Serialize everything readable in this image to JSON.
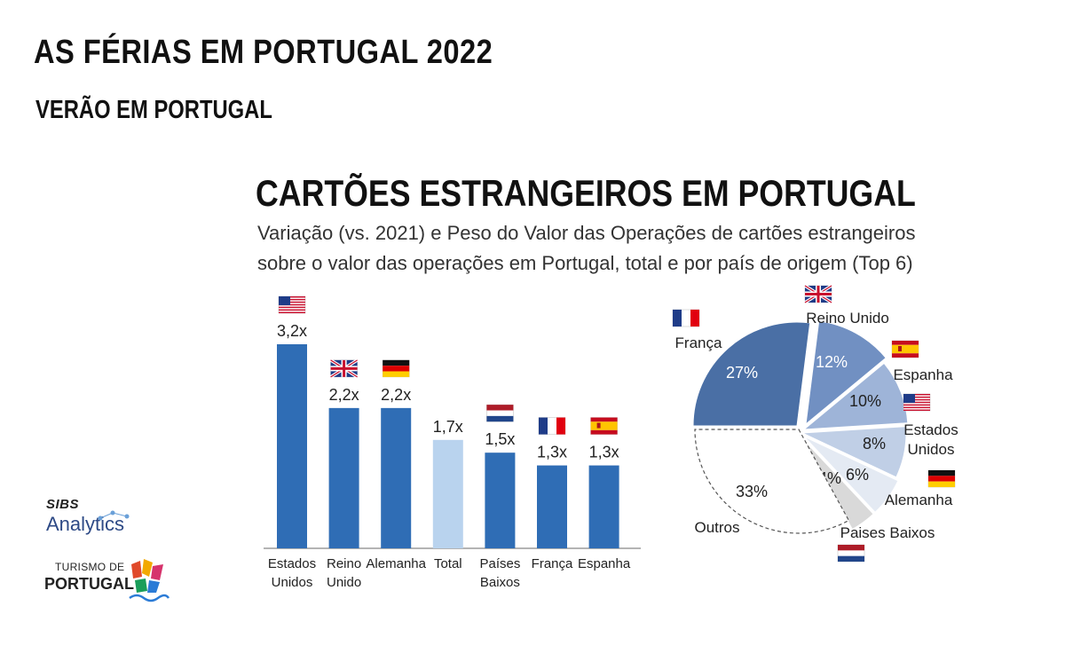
{
  "header": {
    "title": "AS FÉRIAS EM PORTUGAL 2022",
    "subtitle": "VERÃO EM PORTUGAL"
  },
  "chart_section": {
    "title": "CARTÕES ESTRANGEIROS EM PORTUGAL",
    "description_line1": "Variação (vs. 2021) e Peso do Valor das Operações de cartões estrangeiros",
    "description_line2": "sobre o valor das operações em Portugal, total e por país de origem (Top 6)"
  },
  "chart_data": [
    {
      "type": "bar",
      "categories": [
        {
          "label_lines": [
            "Estados",
            "Unidos"
          ],
          "flag": "usa-flag"
        },
        {
          "label_lines": [
            "Reino",
            "Unido"
          ],
          "flag": "uk-flag"
        },
        {
          "label_lines": [
            "Alemanha"
          ],
          "flag": "germany-flag"
        },
        {
          "label_lines": [
            "Total"
          ],
          "flag": ""
        },
        {
          "label_lines": [
            "Países",
            "Baixos"
          ],
          "flag": "netherlands-flag"
        },
        {
          "label_lines": [
            "França"
          ],
          "flag": "france-flag"
        },
        {
          "label_lines": [
            "Espanha"
          ],
          "flag": "spain-flag"
        }
      ],
      "values": [
        3.2,
        2.2,
        2.2,
        1.7,
        1.5,
        1.3,
        1.3
      ],
      "data_labels": [
        "3,2x",
        "2,2x",
        "2,2x",
        "1,7x",
        "1,5x",
        "1,3x",
        "1,3x"
      ],
      "ylim": [
        0,
        3.5
      ],
      "bar_color": "#2f6db5",
      "highlight_color": "#b9d3ee",
      "highlight_index": 3
    },
    {
      "type": "pie",
      "slices": [
        {
          "label": "França",
          "value": 27,
          "value_label": "27%",
          "color": "#4a6fa5",
          "text_color": "#ffffff",
          "flag": "france-flag"
        },
        {
          "label": "Reino Unido",
          "value": 12,
          "value_label": "12%",
          "color": "#7190c2",
          "text_color": "#ffffff",
          "flag": "uk-flag"
        },
        {
          "label": "Espanha",
          "value": 10,
          "value_label": "10%",
          "color": "#9eb4d8",
          "text_color": "#222222",
          "flag": "spain-flag"
        },
        {
          "label": "Estados Unidos",
          "value": 8,
          "value_label": "8%",
          "color": "#c0cfe6",
          "text_color": "#222222",
          "flag": "usa-flag"
        },
        {
          "label": "Alemanha",
          "value": 6,
          "value_label": "6%",
          "color": "#e4eaf3",
          "text_color": "#222222",
          "flag": "germany-flag"
        },
        {
          "label": "Paises Baixos",
          "value": 4,
          "value_label": "4%",
          "color": "#d9d9d9",
          "text_color": "#222222",
          "flag": "netherlands-flag"
        },
        {
          "label": "Outros",
          "value": 33,
          "value_label": "33%",
          "color": "#ffffff",
          "text_color": "#222222",
          "flag": ""
        }
      ]
    }
  ],
  "logos": {
    "sibs_name": "SIBS",
    "sibs_product": "Analytics",
    "tp_line1": "TURISMO DE",
    "tp_line2": "PORTUGAL"
  }
}
